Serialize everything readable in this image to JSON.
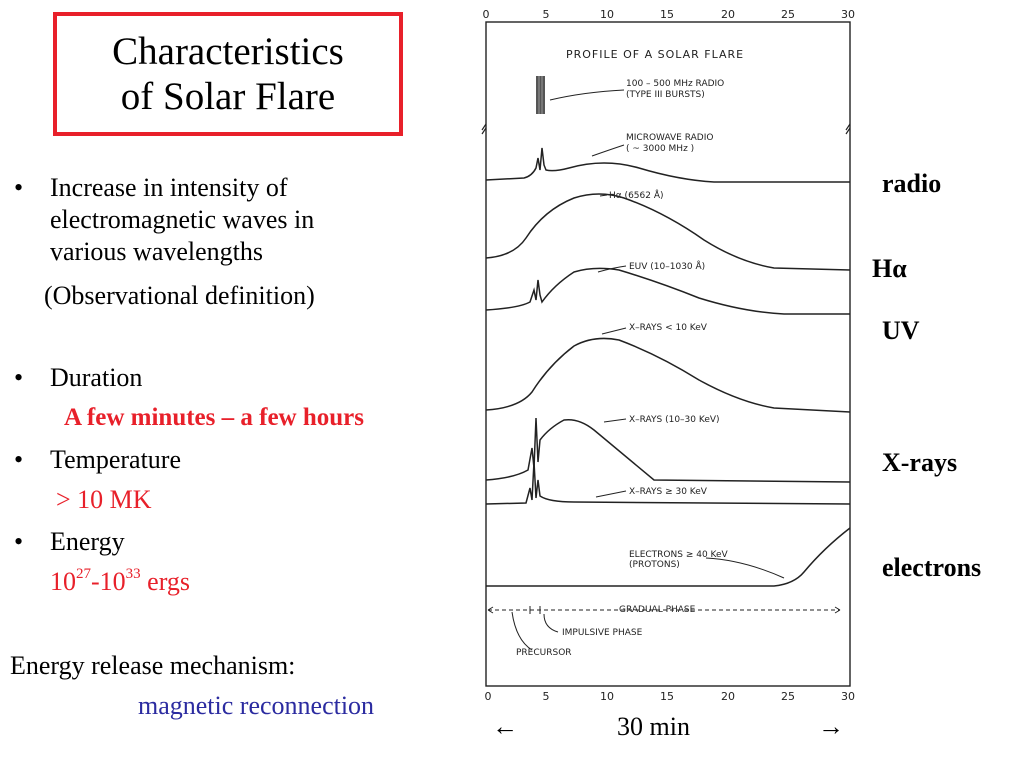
{
  "title": {
    "line1": "Characteristics",
    "line2": "of Solar Flare"
  },
  "bullets": {
    "b1": {
      "marker": "•",
      "line1": "Increase in intensity of",
      "line2": "electromagnetic waves in",
      "line3": "various wavelengths"
    },
    "obs_def": "(Observational definition)",
    "b2": {
      "marker": "•",
      "label": "Duration"
    },
    "duration_value": "A few minutes – a few hours",
    "b3": {
      "marker": "•",
      "label": "Temperature"
    },
    "temperature_value": "> 10 MK",
    "b4": {
      "marker": "•",
      "label": "Energy"
    },
    "energy": {
      "base1": "10",
      "exp1": "27",
      "sep": "-10",
      "exp2": "33",
      "unit": " ergs"
    }
  },
  "mechanism": {
    "label": "Energy release mechanism:",
    "value": "magnetic reconnection"
  },
  "band_labels": {
    "radio": "radio",
    "halpha": "Hα",
    "uv": "UV",
    "xrays": "X-rays",
    "electrons": "electrons"
  },
  "bottom_axis": {
    "left_arrow": "←",
    "span": "30 min",
    "right_arrow": "→"
  },
  "figure": {
    "heading": "PROFILE OF A SOLAR FLARE",
    "axis_ticks": [
      "0",
      "5",
      "10",
      "15",
      "20",
      "25",
      "30"
    ],
    "labels": {
      "radio_burst1": "100 – 500 MHz RADIO",
      "radio_burst2": "(TYPE III BURSTS)",
      "microwave1": "MICROWAVE RADIO",
      "microwave2": "( ~ 3000 MHz )",
      "halpha": "Hα (6562 Å)",
      "euv": "EUV (10–1030 Å)",
      "xray_soft": "X–RAYS < 10 KeV",
      "xray_mid": "X–RAYS (10–30 KeV)",
      "xray_hard": "X–RAYS ≥ 30 KeV",
      "electrons1": "ELECTRONS ≥ 40 KeV",
      "electrons2": "(PROTONS)",
      "gradual": "GRADUAL PHASE",
      "impulsive": "IMPULSIVE PHASE",
      "precursor": "PRECURSOR"
    }
  }
}
